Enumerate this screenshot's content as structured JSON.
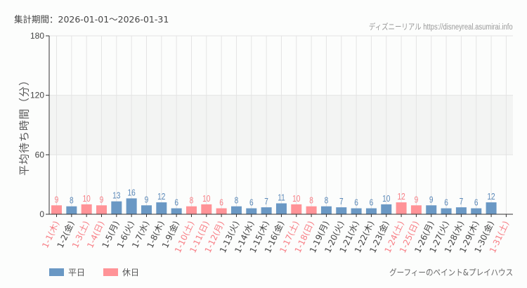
{
  "header": {
    "period": "集計期間：2026-01-01～2026-01-31",
    "credit": "ディズニーリアル https://disneyreal.asumirai.info"
  },
  "footer": {
    "attraction": "グーフィーのペイント&プレイハウス"
  },
  "legend": [
    {
      "label": "平日",
      "color": "#6a98c4"
    },
    {
      "label": "休日",
      "color": "#ff9397"
    }
  ],
  "colors": {
    "weekday": "#6a98c4",
    "holiday": "#ff9397",
    "weekday_text": "#5a88b8",
    "holiday_text": "#f77d84",
    "band": "#f3f4f3"
  },
  "chart_data": {
    "type": "bar",
    "title": "集計期間：2026-01-01～2026-01-31",
    "xlabel": "",
    "ylabel": "平均待ち時間（分）",
    "ylim": [
      0,
      180
    ],
    "yticks": [
      0,
      60,
      120,
      180
    ],
    "grid": true,
    "highlight_band": [
      60,
      120
    ],
    "legend_position": "bottom-left",
    "categories": [
      "1-1(木)",
      "1-2(金)",
      "1-3(土)",
      "1-4(日)",
      "1-5(月)",
      "1-6(火)",
      "1-7(水)",
      "1-8(木)",
      "1-9(金)",
      "1-10(土)",
      "1-11(日)",
      "1-12(月)",
      "1-13(火)",
      "1-14(水)",
      "1-15(木)",
      "1-16(金)",
      "1-17(土)",
      "1-18(日)",
      "1-19(月)",
      "1-20(火)",
      "1-21(水)",
      "1-22(木)",
      "1-23(金)",
      "1-24(土)",
      "1-25(日)",
      "1-26(月)",
      "1-27(火)",
      "1-28(水)",
      "1-29(木)",
      "1-30(金)",
      "1-31(土)"
    ],
    "values": [
      9,
      8,
      10,
      9,
      13,
      16,
      9,
      12,
      6,
      8,
      10,
      6,
      8,
      6,
      7,
      11,
      10,
      8,
      8,
      7,
      6,
      6,
      10,
      12,
      9,
      9,
      6,
      7,
      6,
      12,
      null
    ],
    "day_type": [
      "休日",
      "平日",
      "休日",
      "休日",
      "平日",
      "平日",
      "平日",
      "平日",
      "平日",
      "休日",
      "休日",
      "休日",
      "平日",
      "平日",
      "平日",
      "平日",
      "休日",
      "休日",
      "平日",
      "平日",
      "平日",
      "平日",
      "平日",
      "休日",
      "休日",
      "平日",
      "平日",
      "平日",
      "平日",
      "平日",
      "休日"
    ],
    "series": [
      {
        "name": "平日",
        "values": [
          null,
          8,
          null,
          null,
          13,
          16,
          9,
          12,
          6,
          null,
          null,
          null,
          8,
          6,
          7,
          11,
          null,
          null,
          8,
          7,
          6,
          6,
          10,
          null,
          null,
          9,
          6,
          7,
          6,
          12,
          null
        ]
      },
      {
        "name": "休日",
        "values": [
          9,
          null,
          10,
          9,
          null,
          null,
          null,
          null,
          null,
          8,
          10,
          6,
          null,
          null,
          null,
          null,
          10,
          8,
          null,
          null,
          null,
          null,
          null,
          12,
          9,
          null,
          null,
          null,
          null,
          null,
          null
        ]
      }
    ]
  }
}
